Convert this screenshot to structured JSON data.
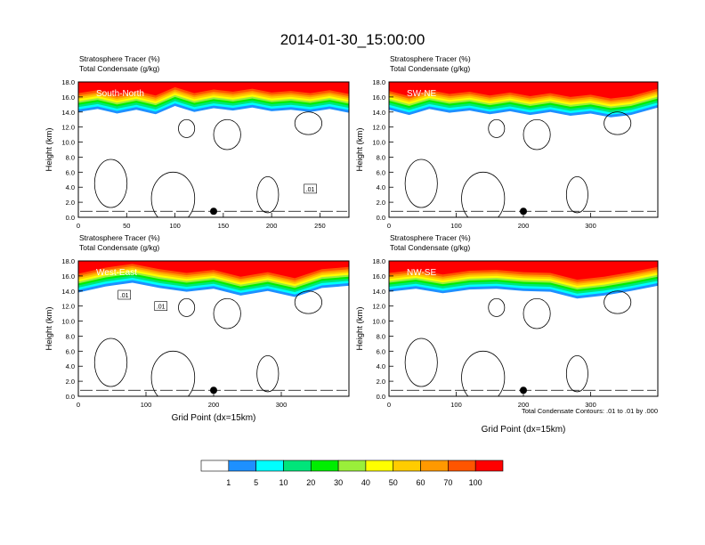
{
  "figure": {
    "title": "2014-01-30_15:00:00",
    "footnote": "Total Condensate Contours: .01 to .01 by .000"
  },
  "colorbar": {
    "colors": [
      "#ffffff",
      "#1e90ff",
      "#00ffff",
      "#00e57a",
      "#00ee00",
      "#9aef3a",
      "#ffff00",
      "#ffcc00",
      "#ff9900",
      "#ff5500",
      "#ff0000"
    ],
    "labels": [
      "1",
      "5",
      "10",
      "20",
      "30",
      "40",
      "50",
      "60",
      "70",
      "100"
    ]
  },
  "chart_data": [
    {
      "type": "heatmap",
      "title_line1": "Stratosphere Tracer   (%)",
      "title_line2": "Total Condensate   (g/kg)",
      "panel_label": "South-North",
      "xlabel": "",
      "ylabel": "Height (km)",
      "xlim": [
        0,
        280
      ],
      "ylim": [
        0,
        18
      ],
      "x_ticks": [
        0,
        50,
        100,
        150,
        200,
        250
      ],
      "y_ticks": [
        "0.0",
        "2.0",
        "4.0",
        "6.0",
        "8.0",
        "10.0",
        "12.0",
        "14.0",
        "16.0",
        "18.0"
      ],
      "marker_x": 140,
      "contour_labels": [
        {
          "text": ".01",
          "x": 240,
          "y": 3.8
        }
      ],
      "tropopause": [
        [
          0,
          14.6
        ],
        [
          20,
          15.0
        ],
        [
          40,
          14.4
        ],
        [
          60,
          14.9
        ],
        [
          80,
          14.3
        ],
        [
          100,
          15.4
        ],
        [
          120,
          14.6
        ],
        [
          140,
          15.1
        ],
        [
          160,
          14.8
        ],
        [
          180,
          15.2
        ],
        [
          200,
          14.7
        ],
        [
          220,
          14.9
        ],
        [
          240,
          14.6
        ],
        [
          260,
          15.0
        ],
        [
          280,
          14.5
        ]
      ],
      "legend": "none"
    },
    {
      "type": "heatmap",
      "title_line1": "Stratosphere Tracer   (%)",
      "title_line2": "Total Condensate   (g/kg)",
      "panel_label": "SW-NE",
      "xlabel": "",
      "ylabel": "Height (km)",
      "xlim": [
        0,
        400
      ],
      "ylim": [
        0,
        18
      ],
      "x_ticks": [
        0,
        100,
        200,
        300
      ],
      "y_ticks": [
        "0.0",
        "2.0",
        "4.0",
        "6.0",
        "8.0",
        "10.0",
        "12.0",
        "14.0",
        "16.0",
        "18.0"
      ],
      "marker_x": 200,
      "contour_labels": [],
      "tropopause": [
        [
          0,
          14.9
        ],
        [
          30,
          14.2
        ],
        [
          60,
          15.0
        ],
        [
          90,
          14.5
        ],
        [
          120,
          14.8
        ],
        [
          150,
          14.3
        ],
        [
          180,
          14.7
        ],
        [
          210,
          14.2
        ],
        [
          240,
          14.6
        ],
        [
          270,
          14.1
        ],
        [
          300,
          14.4
        ],
        [
          330,
          13.9
        ],
        [
          360,
          14.2
        ],
        [
          400,
          15.2
        ]
      ],
      "legend": "none"
    },
    {
      "type": "heatmap",
      "title_line1": "Stratosphere Tracer   (%)",
      "title_line2": "Total Condensate   (g/kg)",
      "panel_label": "West-East",
      "xlabel": "Grid Point (dx=15km)",
      "ylabel": "Height (km)",
      "xlim": [
        0,
        400
      ],
      "ylim": [
        0,
        18
      ],
      "x_ticks": [
        0,
        100,
        200,
        300
      ],
      "y_ticks": [
        "0.0",
        "2.0",
        "4.0",
        "6.0",
        "8.0",
        "10.0",
        "12.0",
        "14.0",
        "16.0",
        "18.0"
      ],
      "marker_x": 200,
      "contour_labels": [
        {
          "text": ".01",
          "x": 68,
          "y": 13.5
        },
        {
          "text": ".01",
          "x": 122,
          "y": 12.0
        }
      ],
      "tropopause": [
        [
          0,
          14.4
        ],
        [
          40,
          15.2
        ],
        [
          80,
          15.7
        ],
        [
          120,
          15.0
        ],
        [
          160,
          14.5
        ],
        [
          200,
          14.9
        ],
        [
          240,
          14.0
        ],
        [
          280,
          14.6
        ],
        [
          320,
          13.8
        ],
        [
          360,
          15.0
        ],
        [
          400,
          15.3
        ]
      ],
      "legend": "none"
    },
    {
      "type": "heatmap",
      "title_line1": "Stratosphere Tracer   (%)",
      "title_line2": "Total Condensate   (g/kg)",
      "panel_label": "NW-SE",
      "xlabel": "Grid Point (dx=15km)",
      "ylabel": "Height (km)",
      "xlim": [
        0,
        400
      ],
      "ylim": [
        0,
        18
      ],
      "x_ticks": [
        0,
        100,
        200,
        300
      ],
      "y_ticks": [
        "0.0",
        "2.0",
        "4.0",
        "6.0",
        "8.0",
        "10.0",
        "12.0",
        "14.0",
        "16.0",
        "18.0"
      ],
      "marker_x": 200,
      "contour_labels": [],
      "tropopause": [
        [
          0,
          14.5
        ],
        [
          40,
          14.9
        ],
        [
          80,
          14.3
        ],
        [
          120,
          14.8
        ],
        [
          160,
          14.9
        ],
        [
          200,
          14.6
        ],
        [
          240,
          14.5
        ],
        [
          280,
          13.6
        ],
        [
          320,
          14.0
        ],
        [
          360,
          14.6
        ],
        [
          400,
          15.3
        ]
      ],
      "legend": "none"
    }
  ]
}
